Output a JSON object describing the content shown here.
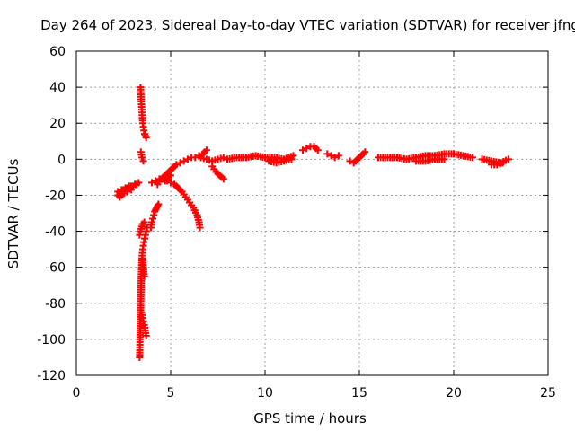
{
  "chart_data": {
    "type": "scatter",
    "title": "Day 264 of 2023, Sidereal Day-to-day VTEC variation (SDTVAR) for receiver jfng",
    "xlabel": "GPS time / hours",
    "ylabel": "SDTVAR / TECUs",
    "xlim": [
      0,
      25
    ],
    "ylim": [
      -120,
      60
    ],
    "xticks": [
      0,
      5,
      10,
      15,
      20,
      25
    ],
    "yticks": [
      -120,
      -100,
      -80,
      -60,
      -40,
      -20,
      0,
      20,
      40,
      60
    ],
    "grid": true,
    "marker": "+",
    "series": [
      {
        "name": "SDTVAR",
        "color": "#ff0000",
        "segments": [
          {
            "x": [
              2.2,
              2.3,
              2.4,
              2.5,
              2.6,
              2.7,
              2.8,
              2.9,
              3.0,
              3.1,
              3.2,
              3.3
            ],
            "y": [
              -18,
              -19,
              -17,
              -17,
              -16,
              -16,
              -15,
              -15,
              -15,
              -14,
              -14,
              -13
            ]
          },
          {
            "x": [
              2.2,
              2.3,
              2.5,
              2.7,
              2.9
            ],
            "y": [
              -20,
              -21,
              -19,
              -18,
              -17
            ]
          },
          {
            "x": [
              3.4,
              3.42,
              3.44,
              3.46,
              3.48,
              3.5,
              3.52,
              3.55,
              3.58,
              3.62,
              3.66,
              3.7
            ],
            "y": [
              40,
              36,
              32,
              29,
              26,
              23,
              20,
              18,
              16,
              14,
              13,
              12
            ]
          },
          {
            "x": [
              3.42,
              3.48,
              3.55
            ],
            "y": [
              4,
              1,
              -1
            ]
          },
          {
            "x": [
              3.35,
              3.36,
              3.37,
              3.38,
              3.39,
              3.4,
              3.41,
              3.42,
              3.43,
              3.44,
              3.46,
              3.48,
              3.5,
              3.52,
              3.55,
              3.58,
              3.62,
              3.66,
              3.7,
              3.75
            ],
            "y": [
              -110,
              -106,
              -100,
              -95,
              -90,
              -85,
              -80,
              -75,
              -70,
              -65,
              -60,
              -55,
              -52,
              -50,
              -48,
              -46,
              -44,
              -42,
              -40,
              -38
            ]
          },
          {
            "x": [
              3.45,
              3.5,
              3.55,
              3.6,
              3.65,
              3.7
            ],
            "y": [
              -85,
              -88,
              -90,
              -92,
              -95,
              -98
            ]
          },
          {
            "x": [
              3.5,
              3.55,
              3.6
            ],
            "y": [
              -55,
              -60,
              -65
            ]
          },
          {
            "x": [
              3.35,
              3.4,
              3.5,
              3.6
            ],
            "y": [
              -42,
              -40,
              -36,
              -35
            ]
          },
          {
            "x": [
              3.95,
              4.0,
              4.05,
              4.1,
              4.15,
              4.2,
              4.25,
              4.3,
              4.35
            ],
            "y": [
              -38,
              -35,
              -33,
              -31,
              -29,
              -28,
              -27,
              -26,
              -25
            ]
          },
          {
            "x": [
              4.0,
              4.2,
              4.4,
              4.6,
              4.8,
              5.0,
              5.2,
              5.4,
              5.6,
              5.8,
              6.0,
              6.2,
              6.4,
              6.5,
              6.55
            ],
            "y": [
              -13,
              -12,
              -11,
              -11,
              -12,
              -13,
              -14,
              -16,
              -18,
              -21,
              -24,
              -27,
              -31,
              -35,
              -38
            ]
          },
          {
            "x": [
              4.3,
              4.5,
              4.7,
              4.9,
              5.1,
              5.3,
              5.5,
              5.7,
              5.9,
              6.1,
              6.3,
              6.5,
              6.7,
              6.9
            ],
            "y": [
              -14,
              -11,
              -9,
              -7,
              -5,
              -3,
              -2,
              -1,
              0,
              1,
              1,
              2,
              3,
              5
            ]
          },
          {
            "x": [
              4.7,
              4.8,
              4.9,
              5.0
            ],
            "y": [
              -12,
              -11,
              -10,
              -9
            ]
          },
          {
            "x": [
              6.6,
              6.9,
              7.2,
              7.5,
              7.8
            ],
            "y": [
              1,
              0,
              -1,
              0,
              1
            ]
          },
          {
            "x": [
              7.2,
              7.4,
              7.6,
              7.8
            ],
            "y": [
              -4,
              -7,
              -9,
              -11
            ]
          },
          {
            "x": [
              8.0,
              8.5,
              9.0,
              9.5,
              10.0,
              10.5,
              11.0,
              11.5
            ],
            "y": [
              0,
              1,
              1,
              2,
              1,
              1,
              0,
              2
            ]
          },
          {
            "x": [
              10.2,
              10.6,
              11.0,
              11.4
            ],
            "y": [
              -1,
              -2,
              -1,
              0
            ]
          },
          {
            "x": [
              12.0,
              12.2,
              12.4,
              12.6,
              12.8
            ],
            "y": [
              5,
              6,
              7,
              7,
              5
            ]
          },
          {
            "x": [
              13.3,
              13.5,
              13.7,
              13.9
            ],
            "y": [
              3,
              2,
              1,
              2
            ]
          },
          {
            "x": [
              14.5,
              14.7,
              14.9,
              15.1,
              15.3
            ],
            "y": [
              -1,
              -2,
              0,
              2,
              4
            ]
          },
          {
            "x": [
              16.0,
              16.5,
              17.0,
              17.5,
              18.0,
              18.5,
              19.0,
              19.5,
              20.0,
              20.5,
              21.0
            ],
            "y": [
              1,
              1,
              1,
              0,
              1,
              2,
              2,
              3,
              3,
              2,
              1
            ]
          },
          {
            "x": [
              18.0,
              18.5,
              19.0,
              19.5
            ],
            "y": [
              -1,
              -1,
              0,
              0
            ]
          },
          {
            "x": [
              21.5,
              22.0,
              22.5,
              22.9
            ],
            "y": [
              0,
              -1,
              -2,
              0
            ]
          },
          {
            "x": [
              22.0,
              22.3,
              22.6
            ],
            "y": [
              -3,
              -3,
              -2
            ]
          }
        ]
      }
    ]
  }
}
